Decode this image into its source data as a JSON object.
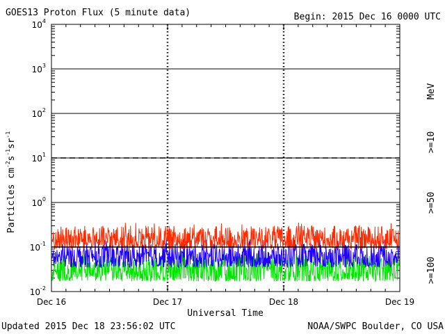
{
  "header": {
    "title": "GOES13 Proton Flux (5 minute data)",
    "begin": "Begin: 2015 Dec 16 0000 UTC"
  },
  "footer": {
    "updated": "Updated 2015 Dec 18 23:56:02 UTC",
    "credit": "NOAA/SWPC Boulder, CO USA"
  },
  "chart_data": {
    "type": "line",
    "title": "GOES13 Proton Flux (5 minute data)",
    "xlabel": "Universal Time",
    "ylabel": "Particles cm-2s-1sr-1",
    "yscale": "log",
    "ylim": [
      0.01,
      10000
    ],
    "y_ticks": [
      {
        "base": "10",
        "exp": "-2",
        "value": 0.01
      },
      {
        "base": "10",
        "exp": "-1",
        "value": 0.1
      },
      {
        "base": "10",
        "exp": "0",
        "value": 1
      },
      {
        "base": "10",
        "exp": "1",
        "value": 10
      },
      {
        "base": "10",
        "exp": "2",
        "value": 100
      },
      {
        "base": "10",
        "exp": "3",
        "value": 1000
      },
      {
        "base": "10",
        "exp": "4",
        "value": 10000
      }
    ],
    "x_ticks": [
      "Dec 16",
      "Dec 17",
      "Dec 18",
      "Dec 19"
    ],
    "xlim": [
      "2015-12-16",
      "2015-12-19"
    ],
    "grid": true,
    "thresholds": [
      {
        "value": 10,
        "style": "dashed"
      },
      {
        "value": 0.1,
        "style": "solid"
      }
    ],
    "units_label": "MeV",
    "series": [
      {
        "name": ">=10",
        "color": "#ff2a00",
        "typical_range": [
          0.09,
          0.3
        ],
        "peak": 0.36
      },
      {
        "name": ">=50",
        "color": "#1f00ff",
        "typical_range": [
          0.035,
          0.12
        ],
        "peak": 0.15
      },
      {
        "name": ">=100",
        "color": "#00e600",
        "typical_range": [
          0.017,
          0.065
        ],
        "peak": 0.075
      }
    ]
  }
}
